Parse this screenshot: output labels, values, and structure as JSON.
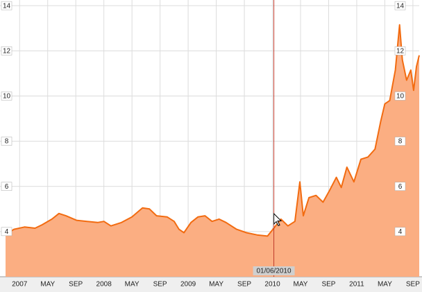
{
  "chart_data": {
    "type": "area",
    "x": [
      -2,
      -0.8,
      0.7,
      2.2,
      3.2,
      4.6,
      5.6,
      6.6,
      8.1,
      9.6,
      11.1,
      12,
      13,
      14.5,
      16,
      17.5,
      18.5,
      19.5,
      21,
      22,
      22.7,
      23.4,
      24.4,
      25.4,
      26.4,
      27.4,
      28.4,
      29.4,
      30.9,
      32.3,
      33.8,
      35.3,
      36.2,
      37.2,
      38.2,
      39.2,
      39.9,
      40.4,
      41.2,
      42.2,
      43.2,
      44.1,
      45.1,
      45.8,
      46.6,
      47.6,
      48.6,
      49.6,
      50.6,
      51.4,
      52,
      52.7,
      53.5,
      54.1,
      54.5,
      55.1,
      55.7,
      56.1,
      56.5,
      56.9
    ],
    "values": [
      3.85,
      4.1,
      4.2,
      4.15,
      4.3,
      4.55,
      4.8,
      4.7,
      4.5,
      4.45,
      4.4,
      4.45,
      4.25,
      4.4,
      4.65,
      5.05,
      5.0,
      4.7,
      4.65,
      4.45,
      4.1,
      3.95,
      4.4,
      4.65,
      4.7,
      4.45,
      4.55,
      4.4,
      4.1,
      3.95,
      3.85,
      3.8,
      4.15,
      4.55,
      4.25,
      4.45,
      6.2,
      4.7,
      5.5,
      5.6,
      5.3,
      5.8,
      6.4,
      5.95,
      6.85,
      6.2,
      7.2,
      7.3,
      7.65,
      8.85,
      9.65,
      9.8,
      11.15,
      13.15,
      11.6,
      10.7,
      11.15,
      10.25,
      11.3,
      11.8
    ],
    "line_color": "#f26b10",
    "fill_color": "#fbae82",
    "xlim": [
      -2,
      56.9
    ],
    "xticks": [
      {
        "value": 0,
        "label": "2007"
      },
      {
        "value": 4,
        "label": "MAY"
      },
      {
        "value": 8,
        "label": "SEP"
      },
      {
        "value": 12,
        "label": "2008"
      },
      {
        "value": 16,
        "label": "MAY"
      },
      {
        "value": 20,
        "label": "SEP"
      },
      {
        "value": 24,
        "label": "2009"
      },
      {
        "value": 28,
        "label": "MAY"
      },
      {
        "value": 32,
        "label": "SEP"
      },
      {
        "value": 36,
        "label": "2010"
      },
      {
        "value": 40,
        "label": "MAY"
      },
      {
        "value": 44,
        "label": "SEP"
      },
      {
        "value": 48,
        "label": "2011"
      },
      {
        "value": 52,
        "label": "MAY"
      },
      {
        "value": 56,
        "label": "SEP"
      }
    ],
    "ylim": [
      2,
      14.25
    ],
    "yticks": [
      4,
      6,
      8,
      10,
      12,
      14
    ],
    "grid": true,
    "cursor": {
      "x": 36.2,
      "label": "01/06/2010"
    }
  }
}
